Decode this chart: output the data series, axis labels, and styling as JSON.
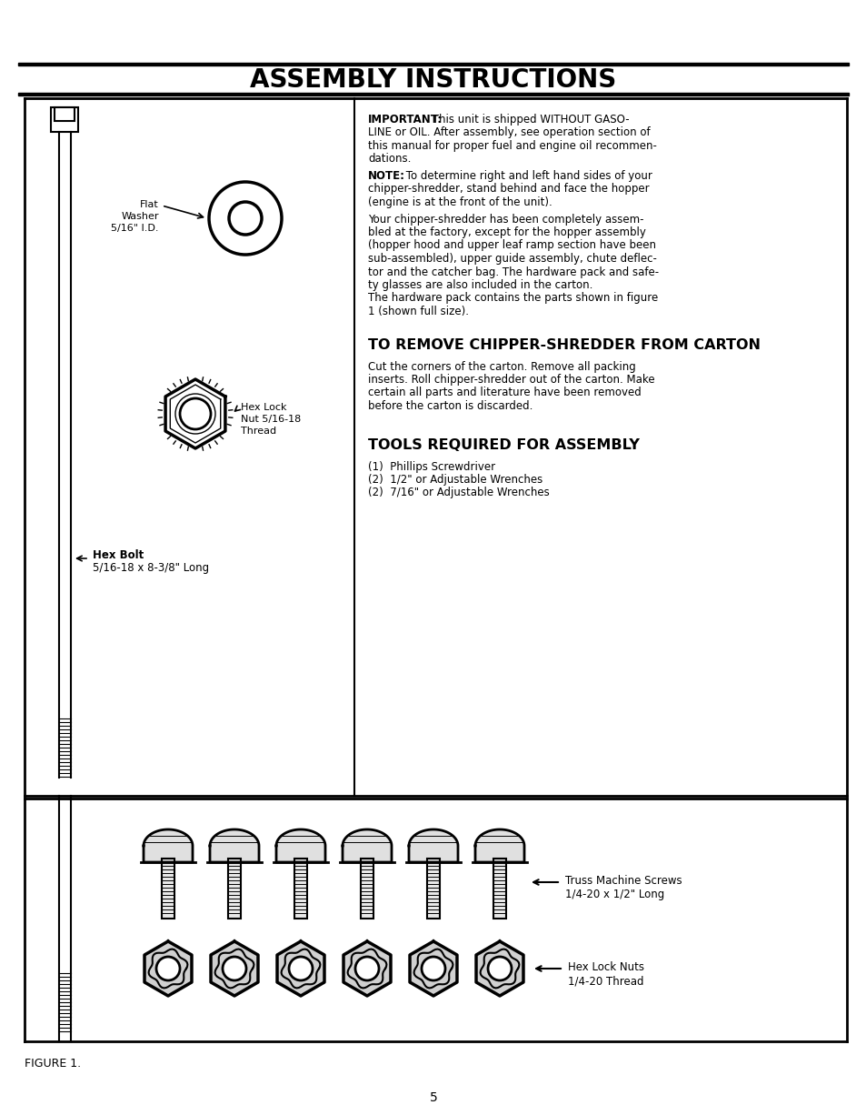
{
  "title": "ASSEMBLY INSTRUCTIONS",
  "bg_color": "#ffffff",
  "page_number": "5",
  "figure_label": "FIGURE 1.",
  "section1_title": "TO REMOVE CHIPPER-SHREDDER FROM CARTON",
  "section1_body_lines": [
    "Cut the corners of the carton. Remove all packing",
    "inserts. Roll chipper-shredder out of the carton. Make",
    "certain all parts and literature have been removed",
    "before the carton is discarded."
  ],
  "section2_title": "TOOLS REQUIRED FOR ASSEMBLY",
  "section2_items": [
    "(1)  Phillips Screwdriver",
    "(2)  1/2\" or Adjustable Wrenches",
    "(2)  7/16\" or Adjustable Wrenches"
  ],
  "imp_bold": "IMPORTANT:",
  "imp_rest": " This unit is shipped WITHOUT GASO-",
  "imp_lines": [
    "LINE or OIL. After assembly, see operation section of",
    "this manual for proper fuel and engine oil recommen-",
    "dations."
  ],
  "note_bold": "NOTE:",
  "note_rest": " To determine right and left hand sides of your",
  "note_lines": [
    "chipper-shredder, stand behind and face the hopper",
    "(engine is at the front of the unit)."
  ],
  "body_lines": [
    "Your chipper-shredder has been completely assem-",
    "bled at the factory, except for the hopper assembly",
    "(hopper hood and upper leaf ramp section have been",
    "sub-assembled), upper guide assembly, chute deflec-",
    "tor and the catcher bag. The hardware pack and safe-",
    "ty glasses are also included in the carton.",
    "The hardware pack contains the parts shown in figure",
    "1 (shown full size)."
  ],
  "label_flat_washer_lines": [
    "Flat",
    "Washer",
    "5/16\" I.D."
  ],
  "label_hex_lock_nut_lines": [
    "Hex Lock",
    "Nut 5/16-18",
    "Thread"
  ],
  "label_hex_bolt_line1": "Hex Bolt",
  "label_hex_bolt_line2": "5/16-18 x 8-3/8\" Long",
  "label_truss_screws_line1": "Truss Machine Screws",
  "label_truss_screws_line2": "1/4-20 x 1/2\" Long",
  "label_hex_lock_nuts_line1": "Hex Lock Nuts",
  "label_hex_lock_nuts_line2": "1/4-20 Thread"
}
